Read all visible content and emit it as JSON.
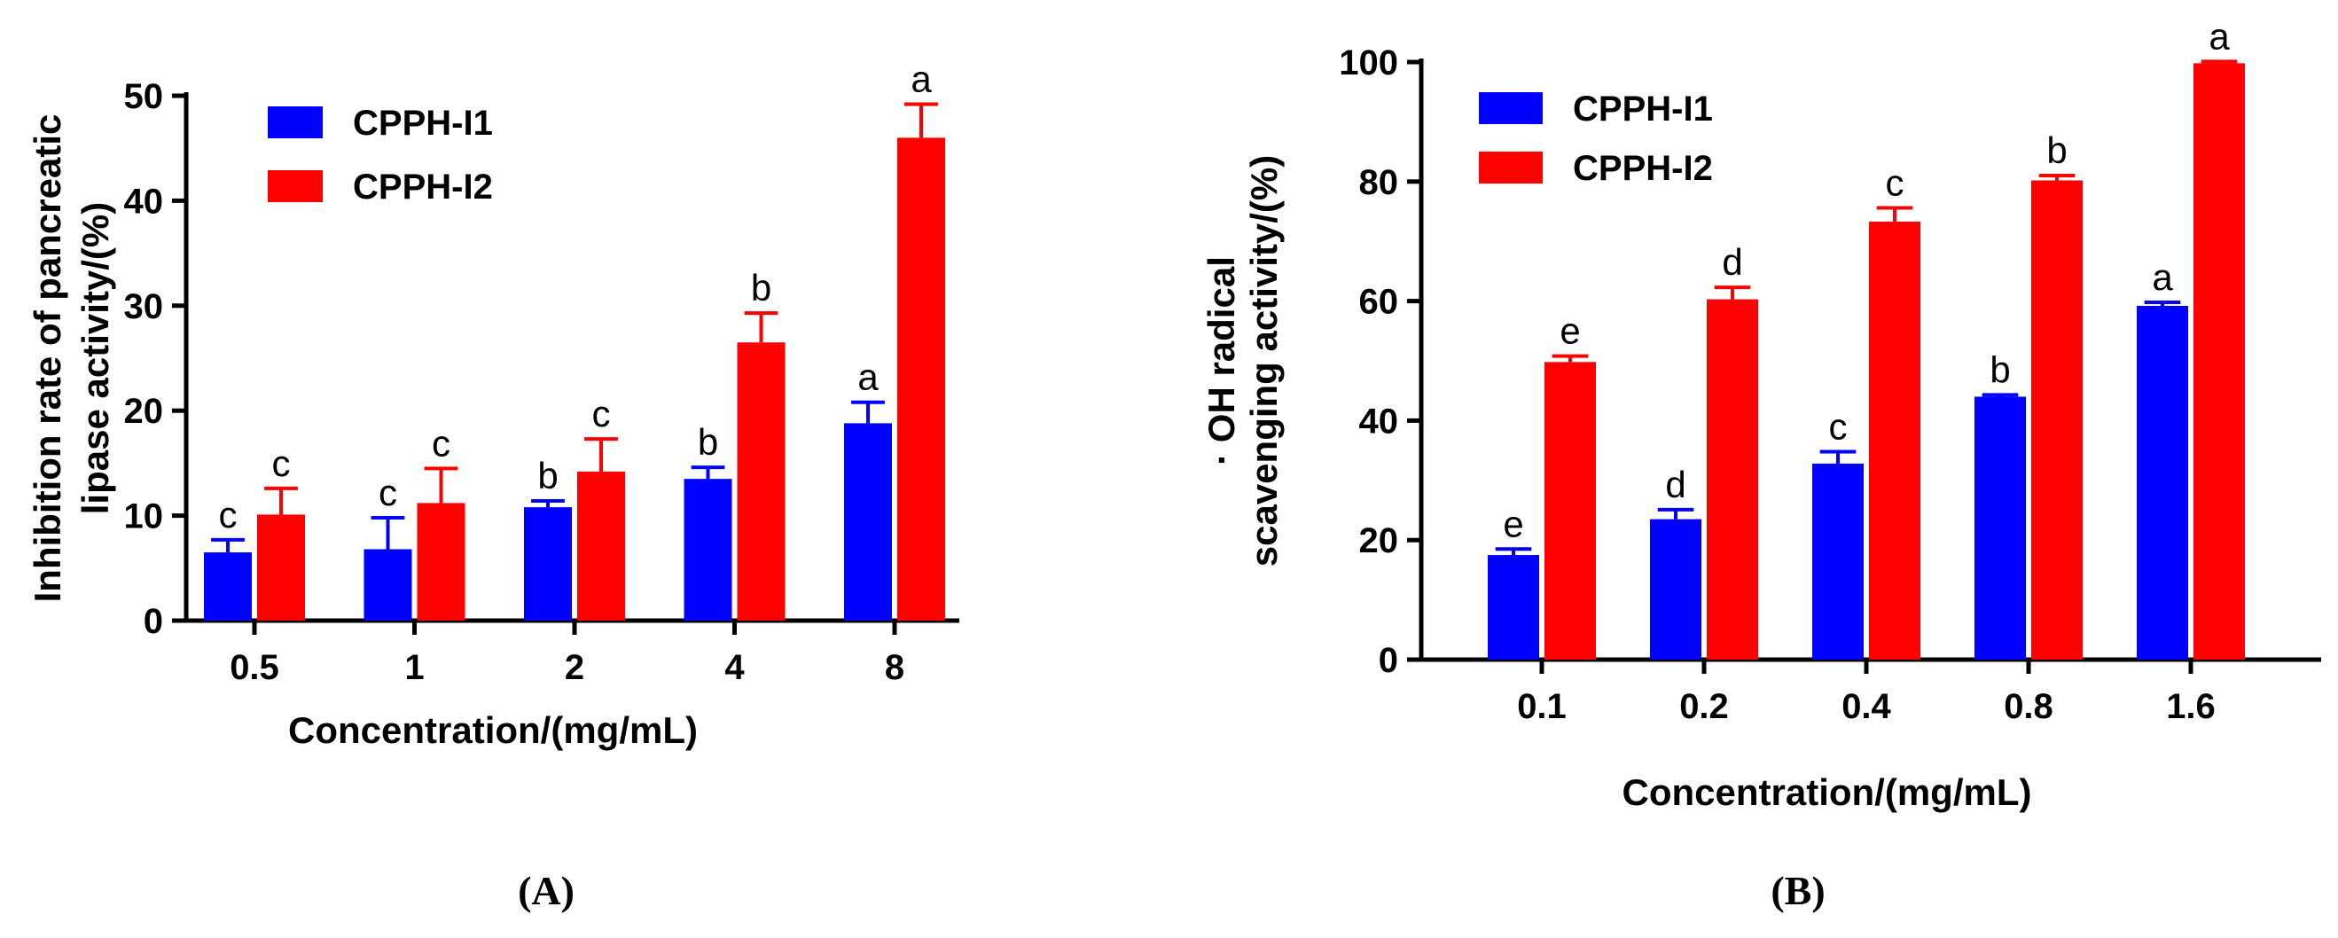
{
  "chart_data": [
    {
      "type": "bar",
      "panel_label": "(A)",
      "categories": [
        "0.5",
        "1",
        "2",
        "4",
        "8"
      ],
      "xlabel": "Concentration/(mg/mL)",
      "ylabel": [
        "Inhibition rate of pancreatic",
        "lipase activity/(%)"
      ],
      "ylim": [
        0,
        50
      ],
      "yticks": [
        0,
        10,
        20,
        30,
        40,
        50
      ],
      "legend_position": "top-left",
      "series": [
        {
          "name": "CPPH-I1",
          "color": "#0000ff",
          "values": [
            6.5,
            6.8,
            10.8,
            13.5,
            18.8
          ],
          "errors": [
            1.2,
            3.0,
            0.6,
            1.1,
            2.0
          ],
          "letters": [
            "c",
            "c",
            "b",
            "b",
            "a"
          ]
        },
        {
          "name": "CPPH-I2",
          "color": "#ff0000",
          "values": [
            10.1,
            11.2,
            14.2,
            26.5,
            46.0
          ],
          "errors": [
            2.5,
            3.3,
            3.1,
            2.8,
            3.2
          ],
          "letters": [
            "c",
            "c",
            "c",
            "b",
            "a"
          ]
        }
      ]
    },
    {
      "type": "bar",
      "panel_label": "(B)",
      "categories": [
        "0.1",
        "0.2",
        "0.4",
        "0.8",
        "1.6"
      ],
      "xlabel": "Concentration/(mg/mL)",
      "ylabel": [
        "· OH radical",
        "scavenging activity/(%)"
      ],
      "ylim": [
        0,
        100
      ],
      "yticks": [
        0,
        20,
        40,
        60,
        80,
        100
      ],
      "legend_position": "top-left",
      "series": [
        {
          "name": "CPPH-I1",
          "color": "#0000ff",
          "values": [
            17.5,
            23.5,
            32.8,
            44.0,
            59.2
          ],
          "errors": [
            1.0,
            1.6,
            2.0,
            0.3,
            0.6
          ],
          "letters": [
            "e",
            "d",
            "c",
            "b",
            "a"
          ]
        },
        {
          "name": "CPPH-I2",
          "color": "#ff0000",
          "values": [
            49.8,
            60.3,
            73.3,
            80.2,
            99.8
          ],
          "errors": [
            1.0,
            2.0,
            2.3,
            0.8,
            0.3
          ],
          "letters": [
            "e",
            "d",
            "c",
            "b",
            "a"
          ]
        }
      ]
    }
  ]
}
